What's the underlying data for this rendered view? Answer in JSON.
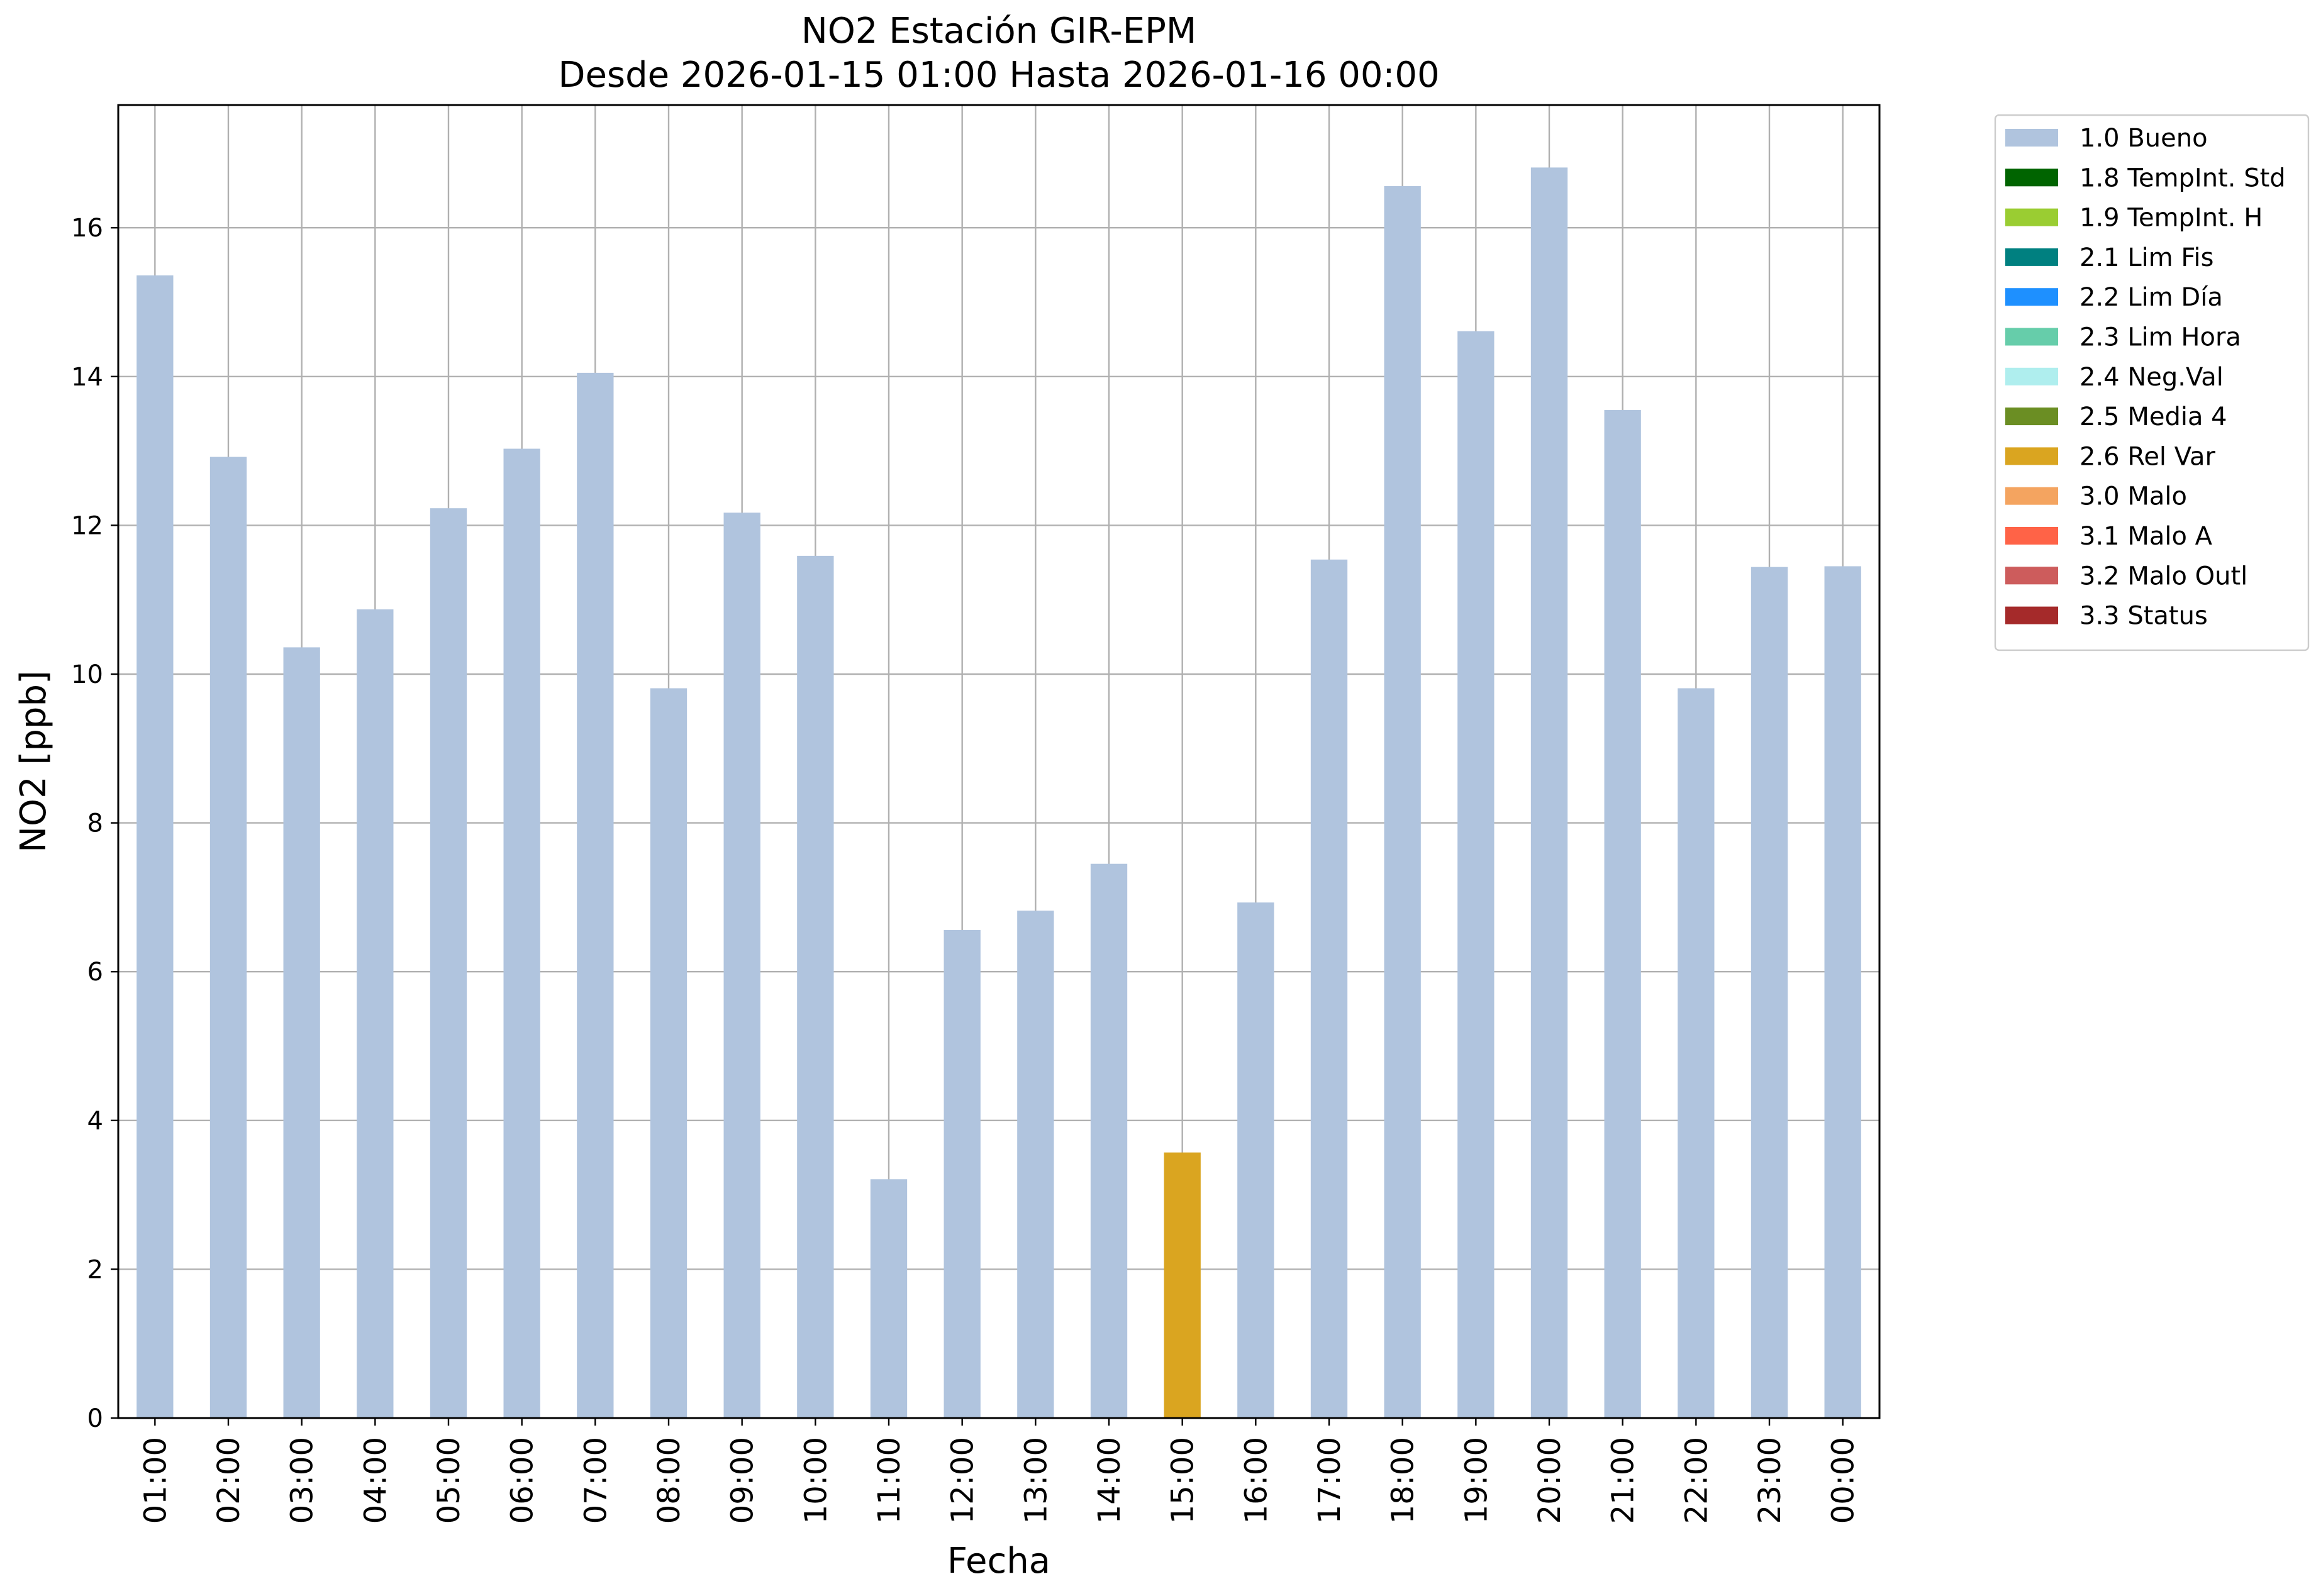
{
  "chart_data": {
    "type": "bar",
    "title": "NO2 Estación GIR-EPM",
    "subtitle": "Desde 2026-01-15 01:00 Hasta 2026-01-16 00:00",
    "xlabel": "Fecha",
    "ylabel": "NO2 [ppb]",
    "ylim": [
      0,
      17.65
    ],
    "yticks": [
      0,
      2,
      4,
      6,
      8,
      10,
      12,
      14,
      16
    ],
    "grid": true,
    "legend_position": "outside-top-right",
    "categories": [
      "01:00",
      "02:00",
      "03:00",
      "04:00",
      "05:00",
      "06:00",
      "07:00",
      "08:00",
      "09:00",
      "10:00",
      "11:00",
      "12:00",
      "13:00",
      "14:00",
      "15:00",
      "16:00",
      "17:00",
      "18:00",
      "19:00",
      "20:00",
      "21:00",
      "22:00",
      "23:00",
      "00:00"
    ],
    "values": [
      15.36,
      12.92,
      10.36,
      10.87,
      12.23,
      13.03,
      14.05,
      9.81,
      12.17,
      11.59,
      3.21,
      6.56,
      6.82,
      7.45,
      3.57,
      6.93,
      11.54,
      16.56,
      14.61,
      16.81,
      13.55,
      9.81,
      11.44,
      11.45
    ],
    "flags": [
      "1.0 Bueno",
      "1.0 Bueno",
      "1.0 Bueno",
      "1.0 Bueno",
      "1.0 Bueno",
      "1.0 Bueno",
      "1.0 Bueno",
      "1.0 Bueno",
      "1.0 Bueno",
      "1.0 Bueno",
      "1.0 Bueno",
      "1.0 Bueno",
      "1.0 Bueno",
      "1.0 Bueno",
      "2.6 Rel Var",
      "1.0 Bueno",
      "1.0 Bueno",
      "1.0 Bueno",
      "1.0 Bueno",
      "1.0 Bueno",
      "1.0 Bueno",
      "1.0 Bueno",
      "1.0 Bueno",
      "1.0 Bueno"
    ],
    "legend": [
      {
        "label": "1.0 Bueno",
        "color": "#b0c4de"
      },
      {
        "label": "1.8 TempInt. Std",
        "color": "#006400"
      },
      {
        "label": "1.9 TempInt. H",
        "color": "#9acd32"
      },
      {
        "label": "2.1 Lim Fis",
        "color": "#008080"
      },
      {
        "label": "2.2 Lim Día",
        "color": "#1e90ff"
      },
      {
        "label": "2.3 Lim Hora",
        "color": "#66cdaa"
      },
      {
        "label": "2.4 Neg.Val",
        "color": "#afeeee"
      },
      {
        "label": "2.5 Media 4",
        "color": "#6b8e23"
      },
      {
        "label": "2.6 Rel Var",
        "color": "#daa520"
      },
      {
        "label": "3.0 Malo",
        "color": "#f4a460"
      },
      {
        "label": "3.1 Malo A",
        "color": "#ff6347"
      },
      {
        "label": "3.2 Malo Outl",
        "color": "#cd5c5c"
      },
      {
        "label": "3.3 Status",
        "color": "#a52a2a"
      }
    ]
  }
}
